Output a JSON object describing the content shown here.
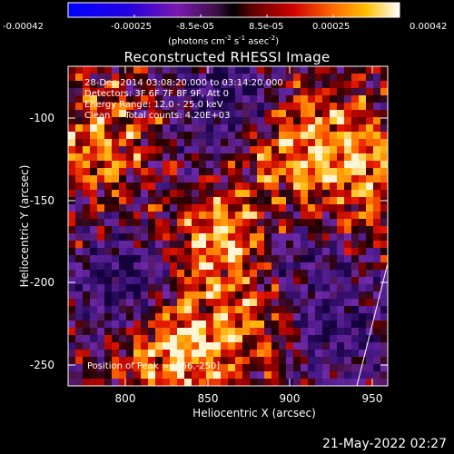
{
  "colorbar": {
    "ticks": [
      "-0.00042",
      "-0.00025",
      "-8.5e-05",
      "8.5e-05",
      "0.00025",
      "0.00042"
    ],
    "unit_text": "(photons cm",
    "unit_exp1": "-2",
    "unit_mid": " s",
    "unit_exp2": "-1",
    "unit_mid2": " asec",
    "unit_exp3": "-2",
    "unit_end": ")"
  },
  "plot": {
    "title": "Reconstructed RHESSI Image",
    "annotations": [
      "28-Dec-2014 03:08:20.000 to 03:14:20.000",
      "Detectors: 3F 6F 7F 8F 9F, Att 0",
      "Energy Range: 12.0 - 25.0 keV",
      "Clean     Total counts: 4.20E+03"
    ],
    "peak_text": "Position of Peak = [856,-250]",
    "xlabel": "Heliocentric X (arcsec)",
    "ylabel": "Heliocentric Y (arcsec)",
    "x_ticks": [
      "800",
      "850",
      "900",
      "950"
    ],
    "y_ticks": [
      "-100",
      "-150",
      "-200",
      "-250"
    ]
  },
  "timestamp": "21-May-2022 02:27",
  "colors": {
    "background": "#000000",
    "text": "#ffffff"
  }
}
